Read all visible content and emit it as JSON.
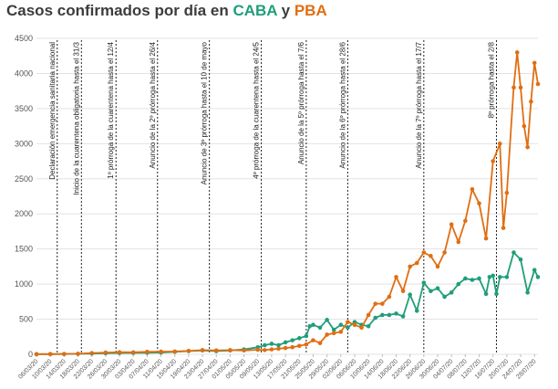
{
  "title": {
    "prefix": "Casos confirmados por día en ",
    "series1": "CABA",
    "connector": " y ",
    "series2": "PBA"
  },
  "colors": {
    "caba": "#1f9e7a",
    "pba": "#e06e12",
    "grid": "#e3e3e3",
    "text": "#555555"
  },
  "chart_data": {
    "type": "line",
    "title": "Casos confirmados por día en CABA y PBA",
    "ylim": [
      0,
      4500
    ],
    "y_ticks": [
      0,
      500,
      1000,
      1500,
      2000,
      2500,
      3000,
      3500,
      4000,
      4500
    ],
    "x_range_days": [
      "2020-03-06",
      "2020-07-29"
    ],
    "x_tick_labels": [
      "06/03/20",
      "10/03/20",
      "14/03/20",
      "18/03/20",
      "22/03/20",
      "26/03/20",
      "30/03/20",
      "03/04/20",
      "07/04/20",
      "11/04/20",
      "15/04/20",
      "19/04/20",
      "23/04/20",
      "27/04/20",
      "01/05/20",
      "05/05/20",
      "09/05/20",
      "13/05/20",
      "17/05/20",
      "21/05/20",
      "25/05/20",
      "29/05/20",
      "02/06/20",
      "06/06/20",
      "10/06/20",
      "14/06/20",
      "18/06/20",
      "22/06/20",
      "26/06/20",
      "30/06/20",
      "04/07/20",
      "08/07/20",
      "12/07/20",
      "16/07/20",
      "20/07/20",
      "24/07/20",
      "28/07/20"
    ],
    "grid": true,
    "annotations": [
      {
        "date": "2020-03-12",
        "text": "Declaración emergencia sanitaria nacional"
      },
      {
        "date": "2020-03-19",
        "text": "Inicio de la cuarentena obligatoria hasta el 31/3"
      },
      {
        "date": "2020-03-29",
        "text": "1º prórroga de la cuarentena hasta el 12/4"
      },
      {
        "date": "2020-04-10",
        "text": "Anuncio de la 2º prórroga hasta el 26/4"
      },
      {
        "date": "2020-04-25",
        "text": "Anuncio de 3º prórroga hasta el 10 de mayo"
      },
      {
        "date": "2020-05-10",
        "text": "4º prórroga de la cuarentena hasta el 24/5"
      },
      {
        "date": "2020-05-23",
        "text": "Anuncio de la 5º prórroga hasta el 7/6"
      },
      {
        "date": "2020-06-04",
        "text": "Anuncio de la 6º prórroga hasta el 28/6"
      },
      {
        "date": "2020-06-26",
        "text": "Anuncio de la 7º prórroga hasta el 17/7"
      },
      {
        "date": "2020-07-17",
        "text": "8º prórroga hasta el 2/8"
      }
    ],
    "series": [
      {
        "name": "CABA",
        "color": "#1f9e7a",
        "points": [
          [
            "2020-03-06",
            2
          ],
          [
            "2020-03-10",
            3
          ],
          [
            "2020-03-14",
            4
          ],
          [
            "2020-03-18",
            6
          ],
          [
            "2020-03-22",
            10
          ],
          [
            "2020-03-26",
            15
          ],
          [
            "2020-03-30",
            18
          ],
          [
            "2020-04-03",
            20
          ],
          [
            "2020-04-07",
            22
          ],
          [
            "2020-04-11",
            25
          ],
          [
            "2020-04-15",
            35
          ],
          [
            "2020-04-19",
            45
          ],
          [
            "2020-04-23",
            55
          ],
          [
            "2020-04-27",
            45
          ],
          [
            "2020-05-01",
            55
          ],
          [
            "2020-05-05",
            70
          ],
          [
            "2020-05-09",
            100
          ],
          [
            "2020-05-11",
            130
          ],
          [
            "2020-05-13",
            150
          ],
          [
            "2020-05-15",
            130
          ],
          [
            "2020-05-17",
            170
          ],
          [
            "2020-05-19",
            200
          ],
          [
            "2020-05-21",
            230
          ],
          [
            "2020-05-23",
            260
          ],
          [
            "2020-05-24",
            400
          ],
          [
            "2020-05-25",
            420
          ],
          [
            "2020-05-27",
            380
          ],
          [
            "2020-05-29",
            490
          ],
          [
            "2020-05-31",
            350
          ],
          [
            "2020-06-02",
            420
          ],
          [
            "2020-06-04",
            380
          ],
          [
            "2020-06-06",
            460
          ],
          [
            "2020-06-08",
            420
          ],
          [
            "2020-06-10",
            400
          ],
          [
            "2020-06-12",
            520
          ],
          [
            "2020-06-14",
            560
          ],
          [
            "2020-06-16",
            560
          ],
          [
            "2020-06-18",
            580
          ],
          [
            "2020-06-20",
            540
          ],
          [
            "2020-06-22",
            850
          ],
          [
            "2020-06-24",
            620
          ],
          [
            "2020-06-26",
            1020
          ],
          [
            "2020-06-28",
            900
          ],
          [
            "2020-06-30",
            940
          ],
          [
            "2020-07-02",
            820
          ],
          [
            "2020-07-04",
            880
          ],
          [
            "2020-07-06",
            1000
          ],
          [
            "2020-07-08",
            1080
          ],
          [
            "2020-07-10",
            1060
          ],
          [
            "2020-07-12",
            1080
          ],
          [
            "2020-07-14",
            860
          ],
          [
            "2020-07-15",
            1100
          ],
          [
            "2020-07-16",
            1120
          ],
          [
            "2020-07-17",
            860
          ],
          [
            "2020-07-18",
            1100
          ],
          [
            "2020-07-20",
            1100
          ],
          [
            "2020-07-22",
            1450
          ],
          [
            "2020-07-24",
            1350
          ],
          [
            "2020-07-26",
            880
          ],
          [
            "2020-07-28",
            1200
          ],
          [
            "2020-07-29",
            1100
          ]
        ]
      },
      {
        "name": "PBA",
        "color": "#e06e12",
        "points": [
          [
            "2020-03-06",
            2
          ],
          [
            "2020-03-10",
            3
          ],
          [
            "2020-03-14",
            5
          ],
          [
            "2020-03-18",
            8
          ],
          [
            "2020-03-22",
            18
          ],
          [
            "2020-03-26",
            25
          ],
          [
            "2020-03-30",
            30
          ],
          [
            "2020-04-03",
            28
          ],
          [
            "2020-04-07",
            35
          ],
          [
            "2020-04-11",
            38
          ],
          [
            "2020-04-15",
            40
          ],
          [
            "2020-04-19",
            48
          ],
          [
            "2020-04-23",
            60
          ],
          [
            "2020-04-27",
            55
          ],
          [
            "2020-05-01",
            60
          ],
          [
            "2020-05-05",
            55
          ],
          [
            "2020-05-09",
            65
          ],
          [
            "2020-05-11",
            60
          ],
          [
            "2020-05-13",
            70
          ],
          [
            "2020-05-15",
            80
          ],
          [
            "2020-05-17",
            90
          ],
          [
            "2020-05-19",
            100
          ],
          [
            "2020-05-21",
            120
          ],
          [
            "2020-05-23",
            140
          ],
          [
            "2020-05-25",
            200
          ],
          [
            "2020-05-27",
            160
          ],
          [
            "2020-05-29",
            280
          ],
          [
            "2020-05-31",
            300
          ],
          [
            "2020-06-02",
            320
          ],
          [
            "2020-06-04",
            460
          ],
          [
            "2020-06-06",
            420
          ],
          [
            "2020-06-08",
            380
          ],
          [
            "2020-06-10",
            560
          ],
          [
            "2020-06-12",
            720
          ],
          [
            "2020-06-14",
            720
          ],
          [
            "2020-06-16",
            820
          ],
          [
            "2020-06-18",
            1100
          ],
          [
            "2020-06-20",
            900
          ],
          [
            "2020-06-22",
            1250
          ],
          [
            "2020-06-24",
            1300
          ],
          [
            "2020-06-26",
            1450
          ],
          [
            "2020-06-28",
            1400
          ],
          [
            "2020-06-30",
            1250
          ],
          [
            "2020-07-02",
            1450
          ],
          [
            "2020-07-04",
            1850
          ],
          [
            "2020-07-06",
            1600
          ],
          [
            "2020-07-08",
            1900
          ],
          [
            "2020-07-10",
            2350
          ],
          [
            "2020-07-12",
            2150
          ],
          [
            "2020-07-14",
            1650
          ],
          [
            "2020-07-16",
            2750
          ],
          [
            "2020-07-18",
            3000
          ],
          [
            "2020-07-19",
            1800
          ],
          [
            "2020-07-20",
            2300
          ],
          [
            "2020-07-22",
            3800
          ],
          [
            "2020-07-23",
            4300
          ],
          [
            "2020-07-24",
            3800
          ],
          [
            "2020-07-25",
            3250
          ],
          [
            "2020-07-26",
            2950
          ],
          [
            "2020-07-27",
            3600
          ],
          [
            "2020-07-28",
            4150
          ],
          [
            "2020-07-29",
            3850
          ]
        ]
      }
    ]
  }
}
